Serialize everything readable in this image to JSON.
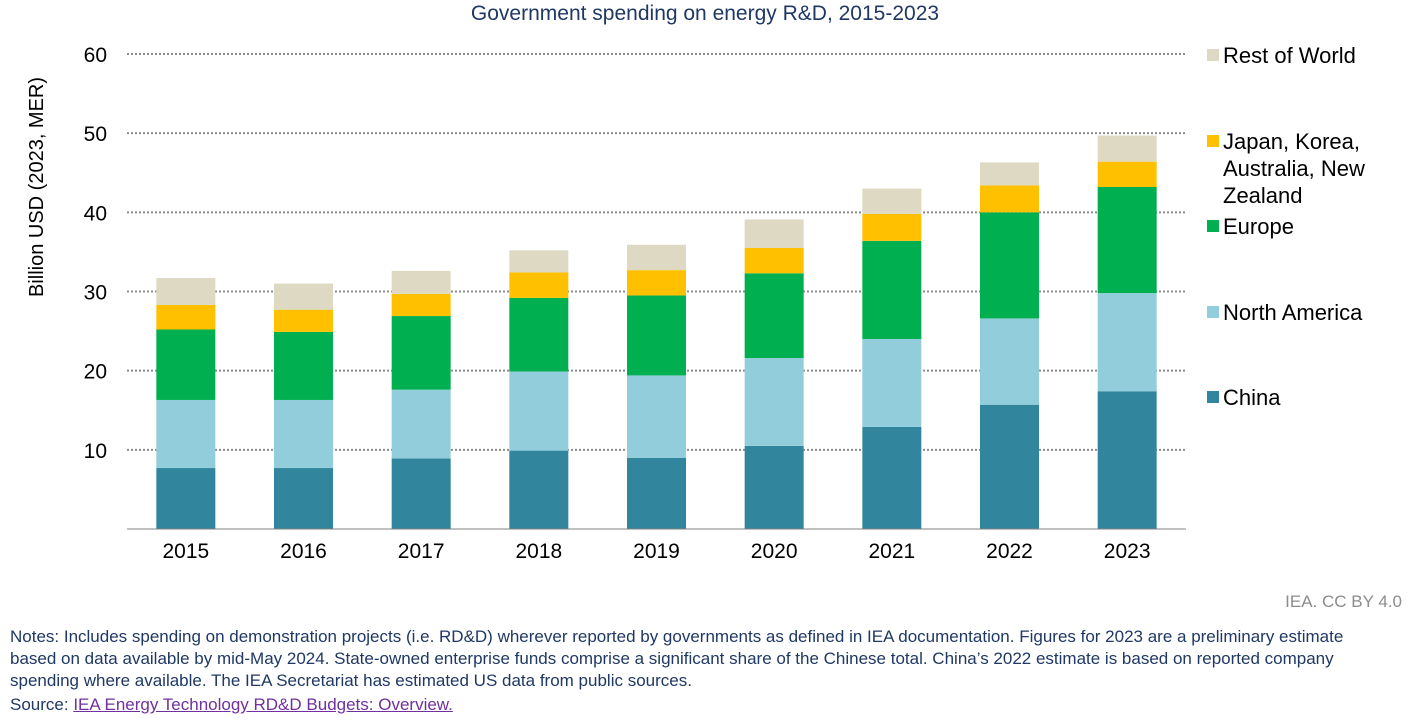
{
  "chart_data": {
    "type": "bar",
    "stacked": true,
    "title": "Government spending on energy R&D, 2015-2023",
    "ylabel": "Billion USD (2023, MER)",
    "xlabel": "",
    "ylim": [
      0,
      60
    ],
    "yticks": [
      10,
      20,
      30,
      40,
      50,
      60
    ],
    "grid": true,
    "legend_position": "right",
    "categories": [
      "2015",
      "2016",
      "2017",
      "2018",
      "2019",
      "2020",
      "2021",
      "2022",
      "2023"
    ],
    "series": [
      {
        "name": "China",
        "color": "#31859c",
        "values": [
          7.7,
          7.7,
          8.9,
          9.9,
          9.0,
          10.5,
          12.9,
          15.7,
          17.4
        ]
      },
      {
        "name": "North America",
        "color": "#92cddc",
        "values": [
          8.6,
          8.6,
          8.7,
          10.0,
          10.4,
          11.1,
          11.1,
          10.9,
          12.4
        ]
      },
      {
        "name": "Europe",
        "color": "#00b050",
        "values": [
          8.9,
          8.6,
          9.3,
          9.3,
          10.1,
          10.7,
          12.4,
          13.4,
          13.4
        ]
      },
      {
        "name": "Japan, Korea, Australia, New Zealand",
        "color": "#ffc000",
        "values": [
          3.1,
          2.8,
          2.8,
          3.2,
          3.2,
          3.2,
          3.4,
          3.4,
          3.2
        ]
      },
      {
        "name": "Rest of World",
        "color": "#ddd9c3",
        "values": [
          3.4,
          3.3,
          2.9,
          2.8,
          3.2,
          3.6,
          3.2,
          2.9,
          3.3
        ]
      }
    ]
  },
  "footer": {
    "credit": "IEA. CC BY 4.0",
    "notes": "Notes: Includes spending on demonstration projects (i.e. RD&D) wherever reported by governments as defined in IEA documentation. Figures for 2023 are a preliminary estimate based on data available by mid-May 2024. State-owned enterprise funds comprise a significant share of the Chinese total. China’s 2022 estimate is based on reported company spending where available. The IEA Secretariat has estimated US data from public sources.",
    "source_prefix": "Source: ",
    "source_link": "IEA Energy Technology RD&D Budgets: Overview."
  }
}
